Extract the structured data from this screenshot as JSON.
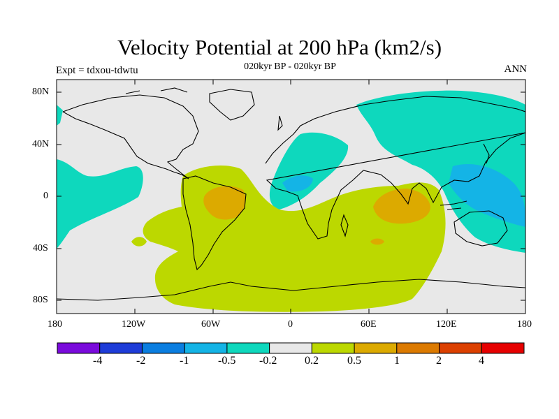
{
  "title": "Velocity Potential at 200 hPa (km2/s)",
  "subtitle": "020kyr BP - 020kyr BP",
  "left_label": "Expt = tdxou-tdwtu",
  "right_label": "ANN",
  "y_ticks": [
    "80N",
    "40N",
    "0",
    "40S",
    "80S"
  ],
  "x_ticks": [
    "180",
    "120W",
    "60W",
    "0",
    "60E",
    "120E",
    "180"
  ],
  "colorbar": {
    "colors": [
      "#7a0adc",
      "#1e3cd8",
      "#0a7ee0",
      "#14b4e6",
      "#0ed8bd",
      "#e8e8e8",
      "#bcd800",
      "#dcaa00",
      "#dc7a00",
      "#dc4000",
      "#e60000"
    ],
    "labels": [
      "-4",
      "-2",
      "-1",
      "-0.5",
      "-0.2",
      "0.2",
      "0.5",
      "1",
      "2",
      "4"
    ]
  },
  "map_colors": {
    "background": "#e8e8e8",
    "neg_weak": "#0ed8bd",
    "neg_mid": "#14b4e6",
    "pos_weak": "#bcd800",
    "pos_mid": "#dcaa00"
  }
}
